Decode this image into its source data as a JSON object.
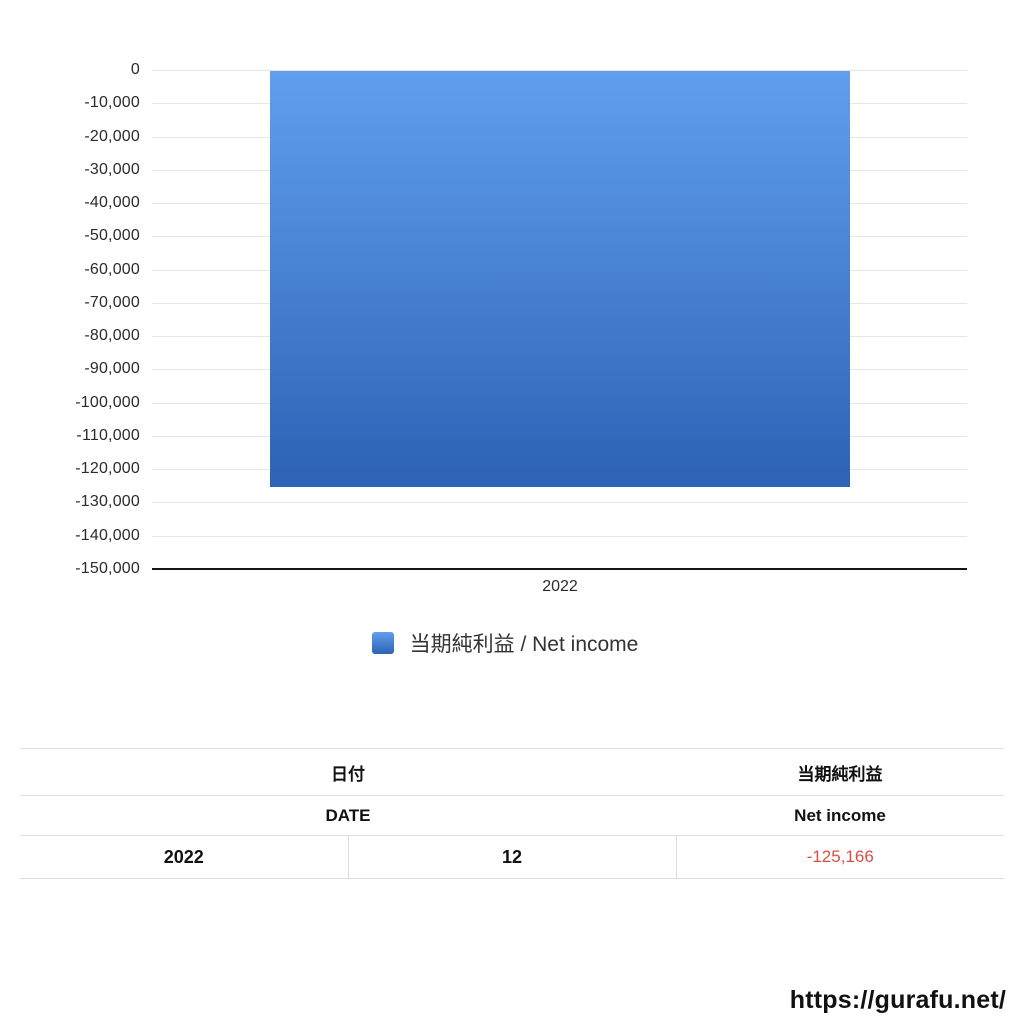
{
  "chart_data": {
    "type": "bar",
    "categories": [
      "2022"
    ],
    "series": [
      {
        "name": "当期純利益 / Net income",
        "values": [
          -125166
        ]
      }
    ],
    "title": "",
    "xlabel": "",
    "ylabel": "",
    "ylim": [
      -150000,
      0
    ],
    "yticks": [
      "0",
      "-10,000",
      "-20,000",
      "-30,000",
      "-40,000",
      "-50,000",
      "-60,000",
      "-70,000",
      "-80,000",
      "-90,000",
      "-100,000",
      "-110,000",
      "-120,000",
      "-130,000",
      "-140,000",
      "-150,000"
    ],
    "grid": true,
    "legend_position": "bottom"
  },
  "colors": {
    "bar_gradient_top": "#619fee",
    "bar_gradient_bottom": "#2d62b5",
    "negative_value": "#d94f43",
    "gridline": "#e6e6e6",
    "axis_line": "#151515"
  },
  "table": {
    "header_row1": {
      "date": "日付",
      "net_income": "当期純利益"
    },
    "header_row2": {
      "date": "DATE",
      "net_income": "Net income"
    },
    "rows": [
      {
        "year": "2022",
        "month": "12",
        "value": "-125,166"
      }
    ]
  },
  "footer": {
    "url": "https://gurafu.net/"
  }
}
